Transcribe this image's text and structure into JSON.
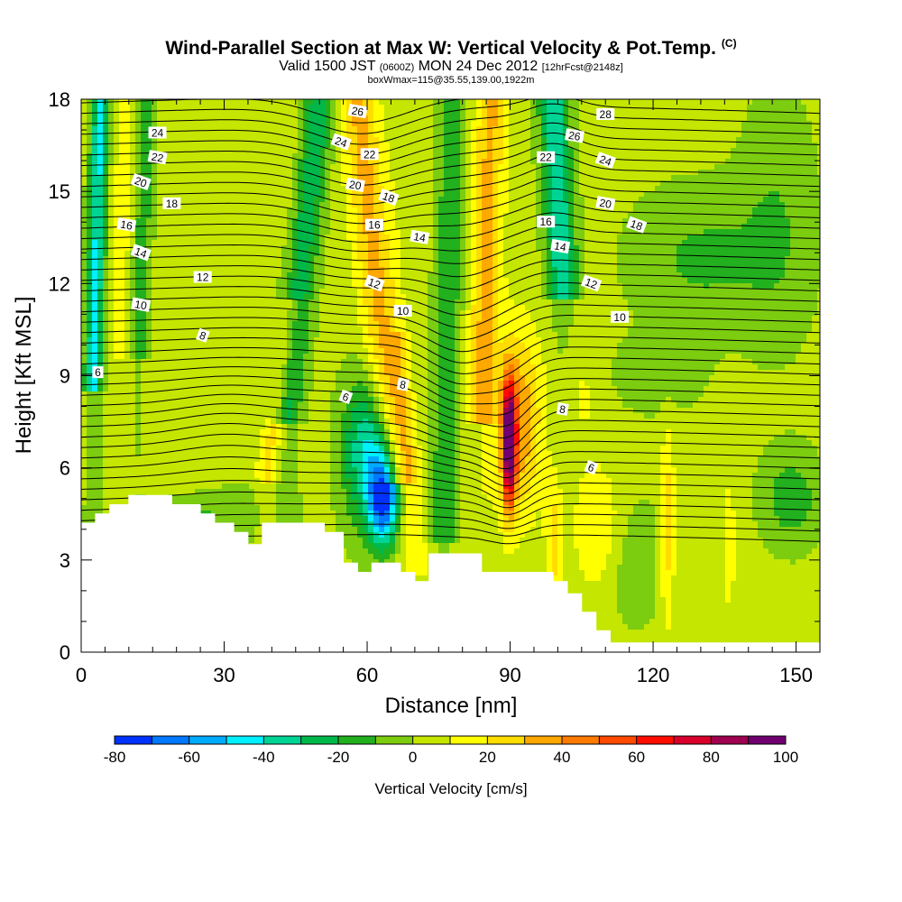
{
  "title": {
    "main": "Wind-Parallel Section at Max W: Vertical Velocity & Pot.Temp.",
    "copyright": "(C)",
    "valid_prefix": "Valid 1500 JST",
    "valid_utc": "(0600Z)",
    "valid_date": "MON 24 Dec 2012",
    "forecast_info": "[12hrFcst@2148z]",
    "box_info": "boxWmax=115@35.55,139.00,1922m"
  },
  "chart_data": {
    "type": "heatmap",
    "xlabel": "Distance [nm]",
    "ylabel": "Height [Kft MSL]",
    "xlim": [
      0,
      155
    ],
    "ylim": [
      0,
      18
    ],
    "x_ticks": [
      0,
      30,
      60,
      90,
      120,
      150
    ],
    "y_ticks": [
      0,
      3,
      6,
      9,
      12,
      15,
      18
    ],
    "colorbar": {
      "label": "Vertical Velocity [cm/s]",
      "tick_labels": [
        -80,
        -60,
        -40,
        -20,
        0,
        20,
        40,
        60,
        80,
        100
      ],
      "levels": [
        -80,
        -70,
        -60,
        -50,
        -40,
        -30,
        -20,
        -10,
        0,
        10,
        20,
        30,
        40,
        50,
        60,
        70,
        80,
        90,
        100
      ],
      "colors": [
        "#0032ff",
        "#0078ff",
        "#00aaff",
        "#00f0ff",
        "#00d494",
        "#00b84a",
        "#22b01e",
        "#7ccc10",
        "#c4e600",
        "#ffff00",
        "#ffdd00",
        "#ffa800",
        "#ff7a00",
        "#ff4a00",
        "#ff0c00",
        "#d8002a",
        "#a00050",
        "#700070"
      ]
    },
    "velocity_features": [
      {
        "x": 4,
        "y": 13,
        "w": -40
      },
      {
        "x": 12,
        "y": 13,
        "w": -25
      },
      {
        "x": 48,
        "y": 16,
        "w": -30
      },
      {
        "x": 56,
        "y": 14,
        "w": 30
      },
      {
        "x": 63,
        "y": 5,
        "w": -70
      },
      {
        "x": 64,
        "y": 14,
        "w": 35
      },
      {
        "x": 71,
        "y": 8,
        "w": 25
      },
      {
        "x": 85,
        "y": 15,
        "w": 25
      },
      {
        "x": 90,
        "y": 6.5,
        "w": 95
      },
      {
        "x": 100,
        "y": 15,
        "w": -45
      },
      {
        "x": 100,
        "y": 4,
        "w": 30
      },
      {
        "x": 123,
        "y": 4,
        "w": 25
      },
      {
        "x": 150,
        "y": 5,
        "w": -20
      }
    ],
    "theta_labels": [
      {
        "text": "24",
        "x": 16,
        "y": 16.9
      },
      {
        "text": "22",
        "x": 16,
        "y": 16.1
      },
      {
        "text": "20",
        "x": 12.5,
        "y": 15.3
      },
      {
        "text": "18",
        "x": 19,
        "y": 14.6
      },
      {
        "text": "16",
        "x": 9.5,
        "y": 13.9
      },
      {
        "text": "14",
        "x": 12.5,
        "y": 13.0
      },
      {
        "text": "12",
        "x": 25.5,
        "y": 12.2
      },
      {
        "text": "10",
        "x": 12.5,
        "y": 11.3
      },
      {
        "text": "8",
        "x": 25.5,
        "y": 10.3
      },
      {
        "text": "6",
        "x": 3.5,
        "y": 9.1
      },
      {
        "text": "26",
        "x": 58,
        "y": 17.6
      },
      {
        "text": "24",
        "x": 54.5,
        "y": 16.6
      },
      {
        "text": "22",
        "x": 60.5,
        "y": 16.2
      },
      {
        "text": "20",
        "x": 57.5,
        "y": 15.2
      },
      {
        "text": "18",
        "x": 64.5,
        "y": 14.8
      },
      {
        "text": "16",
        "x": 61.5,
        "y": 13.9
      },
      {
        "text": "14",
        "x": 71,
        "y": 13.5
      },
      {
        "text": "12",
        "x": 61.5,
        "y": 12.0
      },
      {
        "text": "10",
        "x": 67.5,
        "y": 11.1
      },
      {
        "text": "8",
        "x": 67.5,
        "y": 8.7
      },
      {
        "text": "6",
        "x": 55.5,
        "y": 8.3
      },
      {
        "text": "28",
        "x": 110,
        "y": 17.5
      },
      {
        "text": "26",
        "x": 103.5,
        "y": 16.8
      },
      {
        "text": "24",
        "x": 110,
        "y": 16.0
      },
      {
        "text": "22",
        "x": 97.5,
        "y": 16.1
      },
      {
        "text": "20",
        "x": 110,
        "y": 14.6
      },
      {
        "text": "18",
        "x": 116.5,
        "y": 13.9
      },
      {
        "text": "16",
        "x": 97.5,
        "y": 14.0
      },
      {
        "text": "14",
        "x": 100.5,
        "y": 13.2
      },
      {
        "text": "12",
        "x": 107,
        "y": 12.0
      },
      {
        "text": "10",
        "x": 113,
        "y": 10.9
      },
      {
        "text": "8",
        "x": 101,
        "y": 7.9
      },
      {
        "text": "6",
        "x": 107,
        "y": 6.0
      }
    ],
    "terrain_height_kft": [
      [
        0,
        4.2
      ],
      [
        3,
        4.2
      ],
      [
        3,
        4.5
      ],
      [
        6,
        4.5
      ],
      [
        6,
        4.8
      ],
      [
        10,
        4.8
      ],
      [
        10,
        5.1
      ],
      [
        19,
        5.1
      ],
      [
        19,
        4.8
      ],
      [
        25,
        4.8
      ],
      [
        25,
        4.5
      ],
      [
        28,
        4.5
      ],
      [
        28,
        4.2
      ],
      [
        32,
        4.2
      ],
      [
        32,
        3.9
      ],
      [
        35,
        3.9
      ],
      [
        35,
        3.5
      ],
      [
        38,
        3.5
      ],
      [
        38,
        4.2
      ],
      [
        51,
        4.2
      ],
      [
        51,
        3.9
      ],
      [
        55,
        3.9
      ],
      [
        55,
        2.9
      ],
      [
        58,
        2.9
      ],
      [
        58,
        2.6
      ],
      [
        61,
        2.6
      ],
      [
        61,
        2.9
      ],
      [
        67,
        2.9
      ],
      [
        67,
        2.6
      ],
      [
        70,
        2.6
      ],
      [
        70,
        2.3
      ],
      [
        73,
        2.3
      ],
      [
        73,
        3.2
      ],
      [
        84,
        3.2
      ],
      [
        84,
        2.6
      ],
      [
        99,
        2.6
      ],
      [
        99,
        2.3
      ],
      [
        102,
        2.3
      ],
      [
        102,
        1.9
      ],
      [
        105,
        1.9
      ],
      [
        105,
        1.3
      ],
      [
        108,
        1.3
      ],
      [
        108,
        0.7
      ],
      [
        111,
        0.7
      ],
      [
        111,
        0.3
      ],
      [
        155,
        0.3
      ]
    ]
  }
}
